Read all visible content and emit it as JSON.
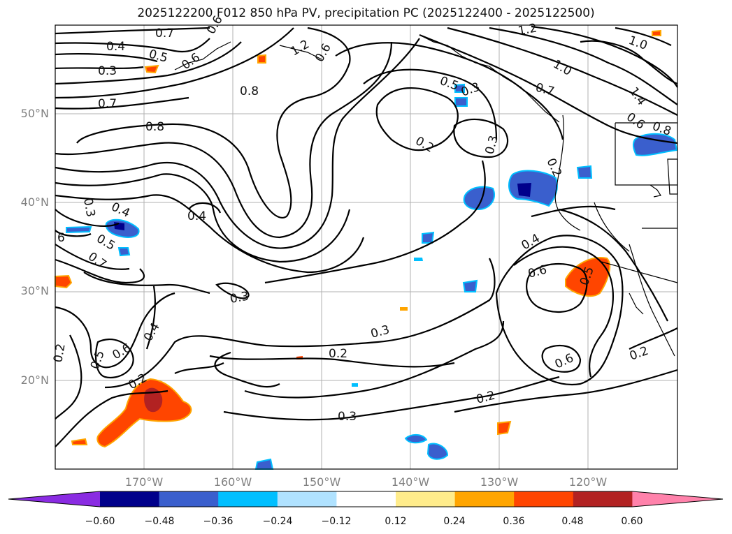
{
  "title": "2025122200 F012 850 hPa PV, precipitation PC (2025122400 - 2025122500)",
  "lat_labels": [
    "50°N",
    "40°N",
    "30°N",
    "20°N"
  ],
  "lon_labels": [
    "170°W",
    "160°W",
    "150°W",
    "140°W",
    "130°W",
    "120°W"
  ],
  "colorbar": {
    "ticks": [
      "−0.60",
      "−0.48",
      "−0.36",
      "−0.24",
      "−0.12",
      "0.12",
      "0.24",
      "0.36",
      "0.48",
      "0.60"
    ],
    "colors": [
      "#8a2be2",
      "#00008b",
      "#3a5fcd",
      "#00bfff",
      "#b0e2ff",
      "#ffffff",
      "#ffec8b",
      "#ffa500",
      "#ff4500",
      "#b22222",
      "#ff82ab"
    ]
  },
  "contour_labels": [
    "0.7",
    "0.6",
    "0.4",
    "0.5",
    "0.3",
    "0.6",
    "1.2",
    "0.6",
    "0.8",
    "0.7",
    "0.8",
    "1.2",
    "1.0",
    "1.0",
    "0.7",
    "1.4",
    "0.5",
    "0.3",
    "0.6",
    "0.8",
    "0.2",
    "0.3",
    "0.2",
    "0.3",
    "0.4",
    "0.4",
    "0.5",
    "0.7",
    "6",
    "0.4",
    "0.6",
    "0.5",
    "0.3",
    "0.4",
    "0.5",
    "0.6",
    "0.2",
    "0.2",
    "0.3",
    "0.2",
    "0.3",
    "0.2",
    "0.6",
    "0.2"
  ],
  "colors": {
    "accent_positive": "#ff4500",
    "accent_negative": "#3a5fcd",
    "gridline": "#b0b0b0",
    "coastline": "#000000"
  }
}
